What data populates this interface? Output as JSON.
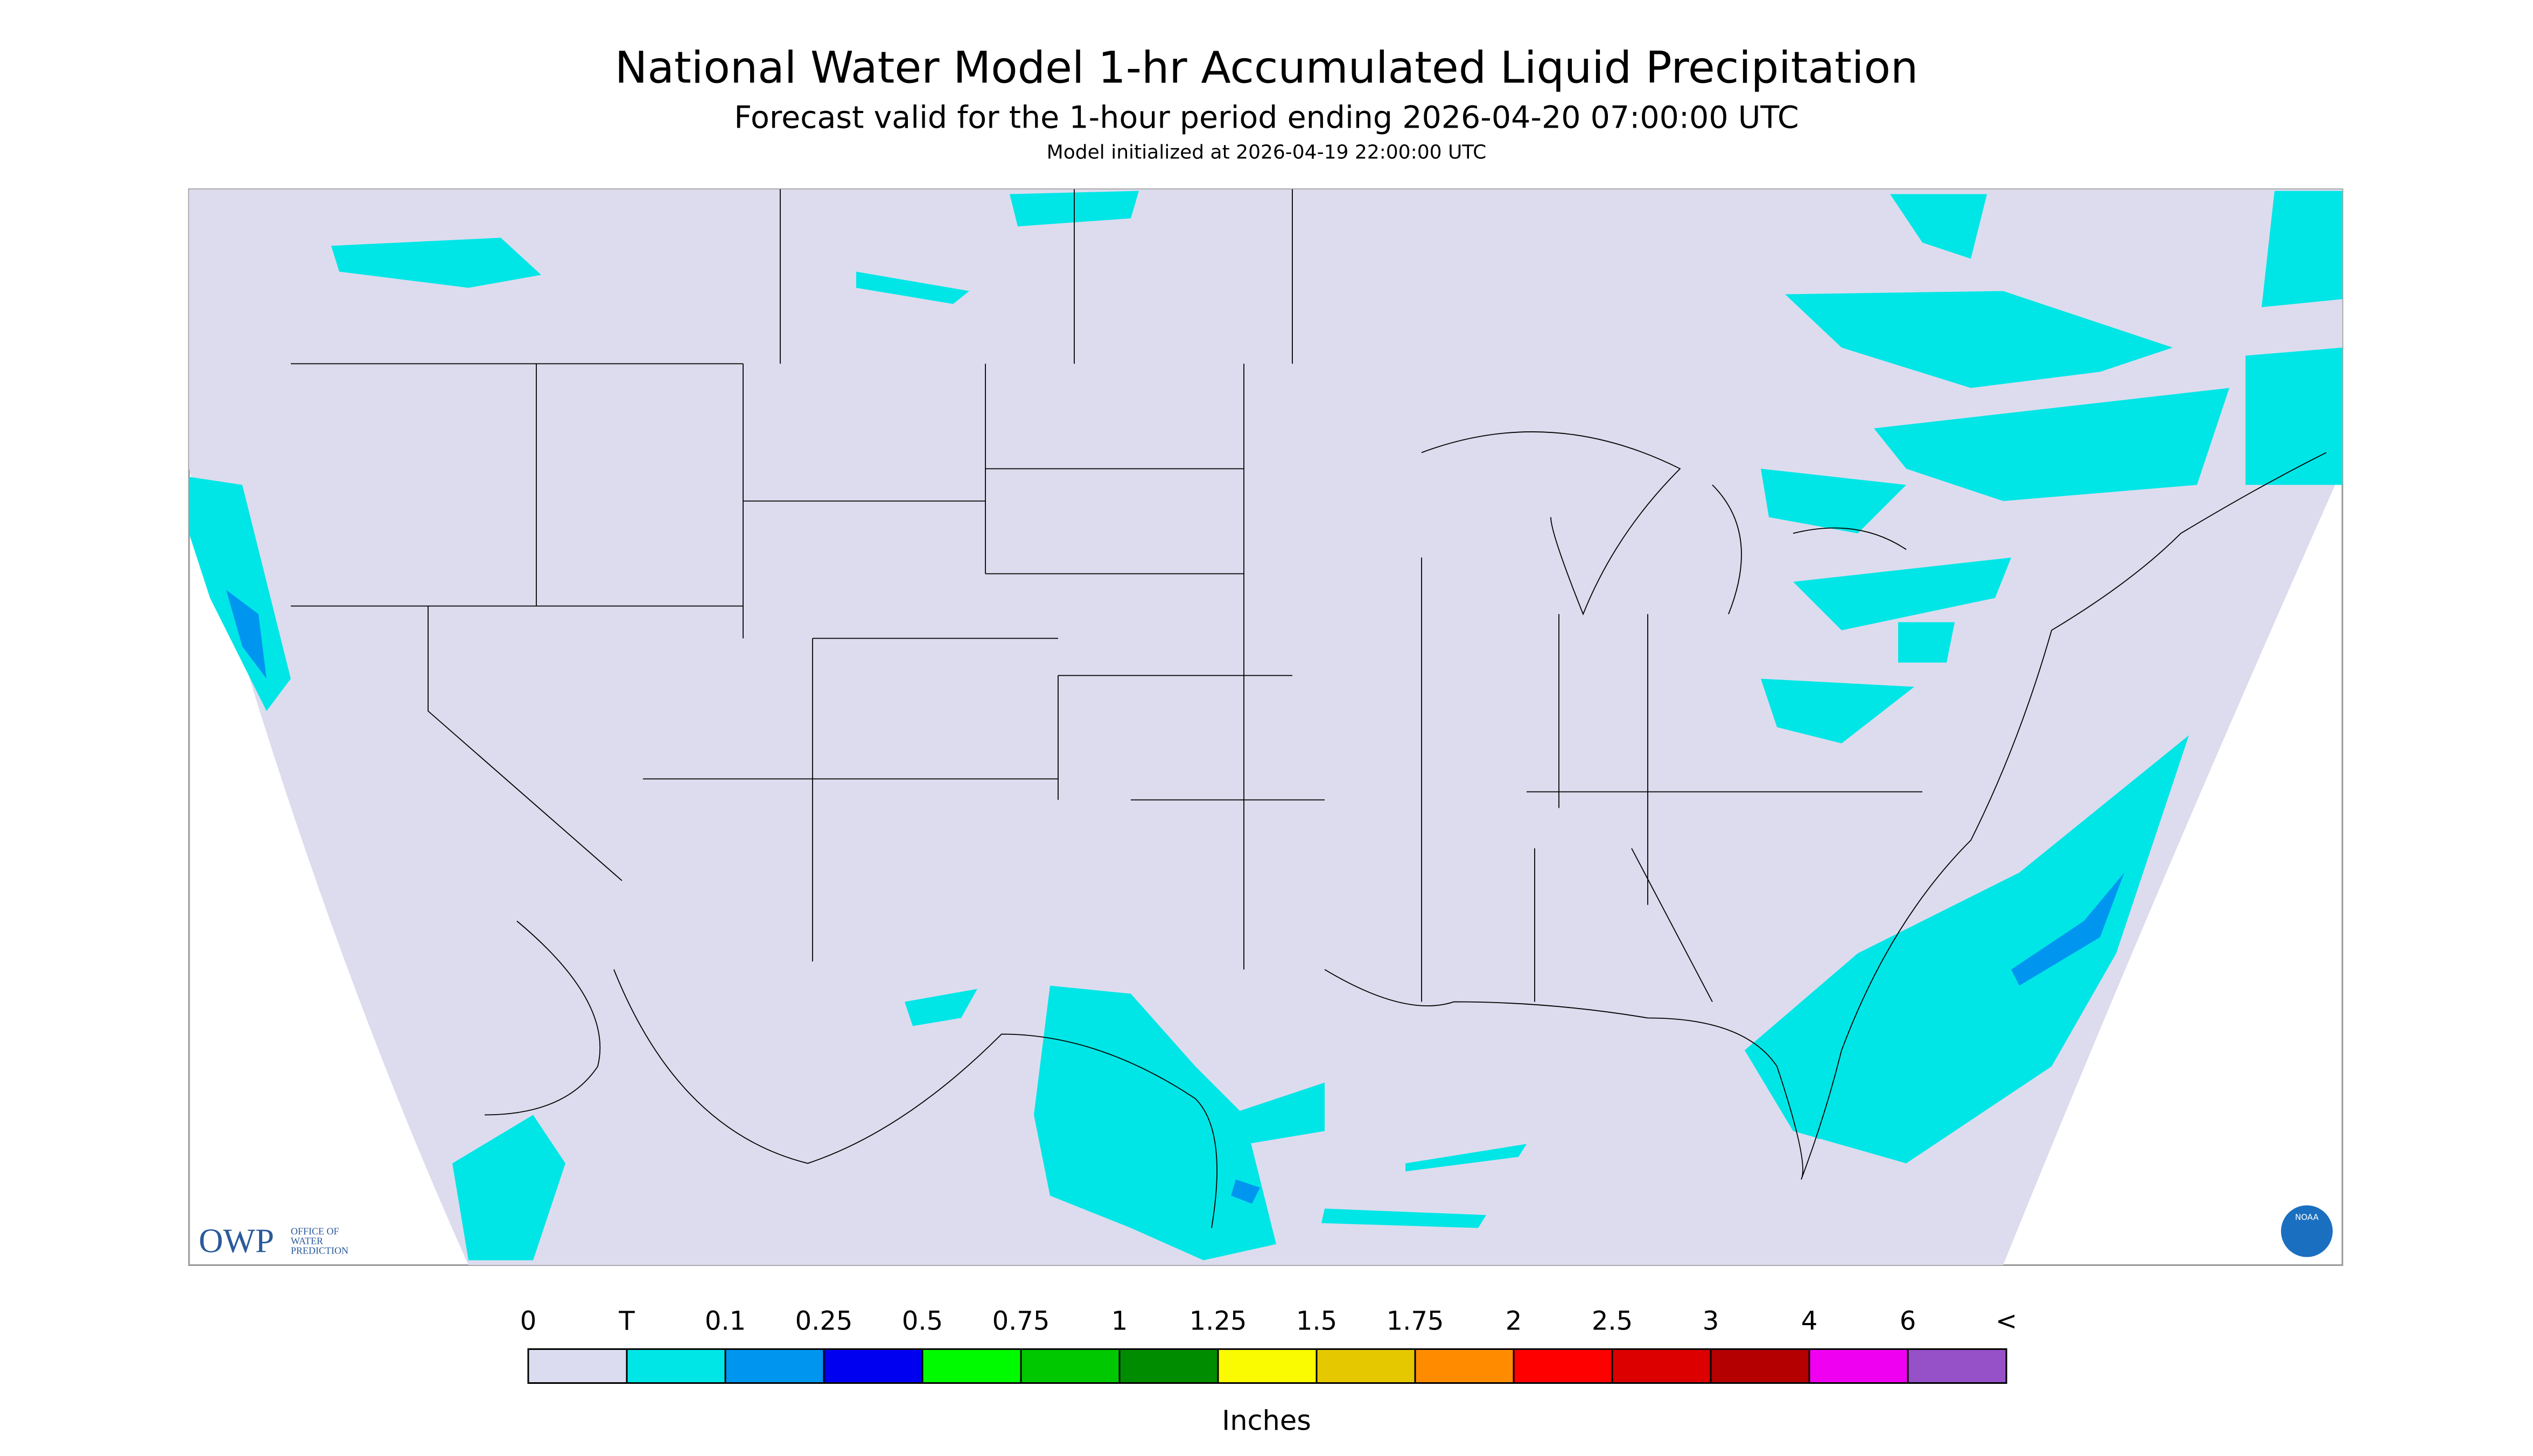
{
  "header": {
    "title": "National Water Model 1-hr Accumulated Liquid Precipitation",
    "subtitle": "Forecast valid for the 1-hour period ending 2026-04-20 07:00:00 UTC",
    "init": "Model initialized at 2026-04-19 22:00:00 UTC"
  },
  "logos": {
    "owp": "OWP",
    "owp_text": [
      "OFFICE OF",
      "WATER",
      "PREDICTION"
    ],
    "noaa": "NOAA"
  },
  "legend": {
    "labels": [
      "0",
      "T",
      "0.1",
      "0.25",
      "0.5",
      "0.75",
      "1",
      "1.25",
      "1.5",
      "1.75",
      "2",
      "2.5",
      "3",
      "4",
      "6",
      "<"
    ],
    "colors": [
      "#dcdcf0",
      "#00e6e6",
      "#0096f0",
      "#0000f0",
      "#00fa00",
      "#00c800",
      "#008c00",
      "#fafa00",
      "#e6c800",
      "#ff8c00",
      "#ff0000",
      "#dc0000",
      "#b40000",
      "#f000f0",
      "#9650c8"
    ],
    "unit": "Inches"
  }
}
